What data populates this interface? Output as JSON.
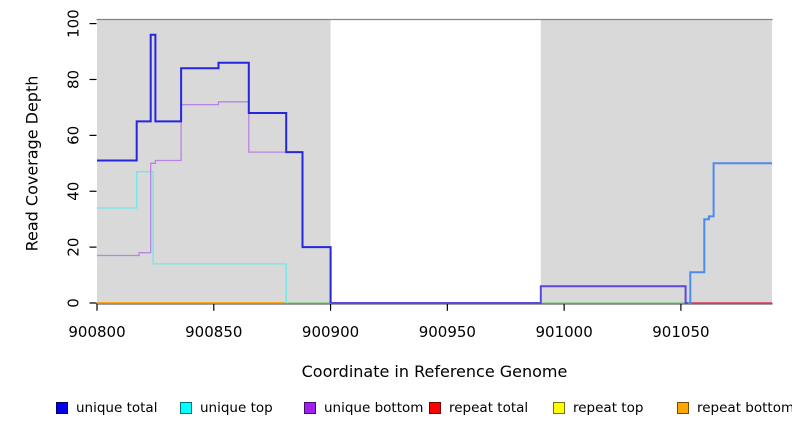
{
  "chart_data": {
    "type": "step-line",
    "xlabel": "Coordinate in Reference Genome",
    "ylabel": "Read Coverage Depth",
    "x_domain": [
      900800,
      901089
    ],
    "y_domain": [
      0,
      100
    ],
    "x_ticks": [
      900800,
      900850,
      900900,
      900950,
      901000,
      901050
    ],
    "y_ticks": [
      0,
      20,
      40,
      60,
      80,
      100
    ],
    "grid": false,
    "shaded_regions": [
      {
        "x0": 900800,
        "x1": 900900,
        "color": "#d9d9d9"
      },
      {
        "x0": 900990,
        "x1": 901089,
        "color": "#d9d9d9"
      }
    ],
    "frame": {
      "top_border_color": "#848484",
      "axis_color": "#000000"
    },
    "lines": [
      {
        "name": "unique-top",
        "color": "#72e6e9",
        "width": 1.3,
        "points": [
          [
            900800,
            34
          ],
          [
            900817,
            47
          ],
          [
            900824,
            14
          ],
          [
            900881,
            0
          ],
          [
            900882,
            0
          ]
        ]
      },
      {
        "name": "top-strand-overlap-zero",
        "color": "#8ecf90",
        "width": 1.5,
        "points": [
          [
            900880,
            0
          ],
          [
            901054,
            0
          ]
        ]
      },
      {
        "name": "repeat-bottom",
        "color": "#ff9c00",
        "width": 1.8,
        "points": [
          [
            900800,
            0
          ],
          [
            900880,
            0
          ]
        ]
      },
      {
        "name": "repeat-total",
        "color": "#d8506e",
        "width": 1.8,
        "points": [
          [
            901054,
            0
          ],
          [
            901089,
            0
          ]
        ]
      },
      {
        "name": "unique-bottom",
        "color": "#b884e3",
        "width": 1.3,
        "points": [
          [
            900800,
            17
          ],
          [
            900818,
            18
          ],
          [
            900823,
            50
          ],
          [
            900825,
            51
          ],
          [
            900836,
            71
          ],
          [
            900852,
            72
          ],
          [
            900865,
            54
          ],
          [
            900888,
            20
          ],
          [
            900900,
            0
          ],
          [
            900990,
            6
          ],
          [
            901052,
            0
          ]
        ]
      },
      {
        "name": "unique-total-left",
        "color": "#2626dd",
        "width": 2,
        "points": [
          [
            900800,
            51
          ],
          [
            900817,
            65
          ],
          [
            900823,
            96
          ],
          [
            900825,
            65
          ],
          [
            900836,
            84
          ],
          [
            900852,
            86
          ],
          [
            900865,
            68
          ],
          [
            900881,
            54
          ],
          [
            900888,
            20
          ],
          [
            900900,
            0
          ]
        ]
      },
      {
        "name": "unique-total-low",
        "color": "#5a48dd",
        "width": 2,
        "points": [
          [
            900900,
            0
          ],
          [
            900990,
            6
          ],
          [
            901052,
            0
          ],
          [
            901053,
            0
          ]
        ]
      },
      {
        "name": "unique-total-right",
        "color": "#4a8ced",
        "width": 2,
        "points": [
          [
            901053,
            0
          ],
          [
            901054,
            11
          ],
          [
            901060,
            30
          ],
          [
            901062,
            31
          ],
          [
            901064,
            50
          ],
          [
            901089,
            50
          ]
        ]
      }
    ],
    "legend": [
      {
        "label": "unique total",
        "color": "#0000ee"
      },
      {
        "label": "unique top",
        "color": "#00ffff"
      },
      {
        "label": "unique bottom",
        "color": "#a020f0"
      },
      {
        "label": "repeat total",
        "color": "#ff0000"
      },
      {
        "label": "repeat top",
        "color": "#ffff00"
      },
      {
        "label": "repeat bottom",
        "color": "#ffa500"
      }
    ],
    "legend_position": "bottom"
  }
}
